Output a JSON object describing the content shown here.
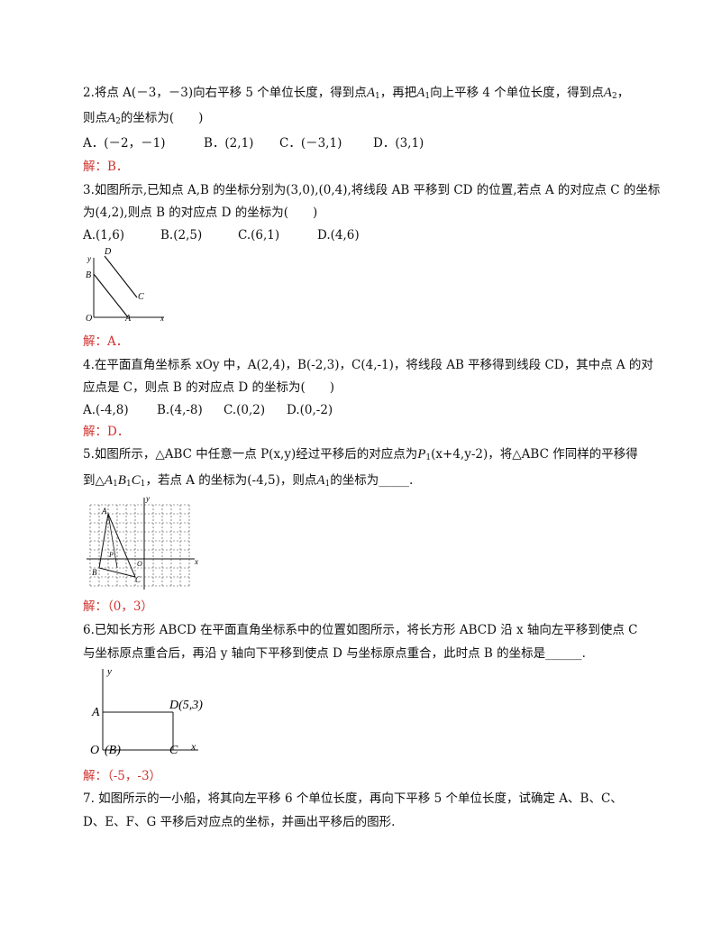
{
  "q2": {
    "line1_a": "2.将点 A(－3，－3)向右平移 5 个单位长度，得到点",
    "A": "A",
    "sub1": "1",
    "line1_b": "，再把",
    "line1_c": "向上平移 4 个单位长度，得到点",
    "sub2": "2",
    "comma": "，",
    "line2_a": "则点",
    "line2_b": "的坐标为(　　)",
    "opt_a": "A．(－2，－1)",
    "opt_b": "B．(2,1)",
    "opt_c": "C．(－3,1)",
    "opt_d": "D．(3,1)",
    "answer": "解：B．"
  },
  "q3": {
    "line1": "3.如图所示,已知点 A,B 的坐标分别为(3,0),(0,4),将线段 AB 平移到 CD 的位置,若点 A 的对应点 C 的坐标",
    "line2": "为(4,2),则点 B 的对应点 D 的坐标为(　　)",
    "opt_a": "A.(1,6)",
    "opt_b": "B.(2,5)",
    "opt_c": "C.(6,1)",
    "opt_d": "D.(4,6)",
    "fig": {
      "D": "D",
      "y": "y",
      "B": "B",
      "C": "C",
      "O": "O",
      "A": "A",
      "x": "x"
    },
    "answer": "解：A．"
  },
  "q4": {
    "line1": "4.在平面直角坐标系 xOy 中，A(2,4)，B(-2,3)，C(4,-1)，将线段 AB 平移得到线段 CD，其中点 A 的对",
    "line2": "应点是 C，则点 B 的对应点 D 的坐标为(　　)",
    "opt_a": "A.(-4,8)",
    "opt_b": "B.(4,-8)",
    "opt_c": "C.(0,2)",
    "opt_d": "D.(0,-2)",
    "answer": "解：D．"
  },
  "q5": {
    "line1_a": "5.如图所示，△ABC 中任意一点 P(x,y)经过平移后的对应点为",
    "P": "P",
    "line1_b": "(x+4,y-2)，将△ABC 作同样的平移得",
    "line2_a": "到△",
    "A": "A",
    "B": "B",
    "C": "C",
    "sub": "1",
    "line2_b": "，若点 A 的坐标为(-4,5)，则点",
    "line2_c": "的坐标为_____.",
    "fig": {
      "y": "y",
      "x": "x",
      "A": "A",
      "B": "B",
      "C": "C",
      "P": "P",
      "O": "O"
    },
    "answer": "解：（0，3）"
  },
  "q6": {
    "line1": "6.已知长方形 ABCD 在平面直角坐标系中的位置如图所示，将长方形 ABCD 沿 x 轴向左平移到使点 C",
    "line2": "与坐标原点重合后，再沿 y 轴向下平移到使点 D 与坐标原点重合，此时点 B 的坐标是______.",
    "fig": {
      "y": "y",
      "A": "A",
      "D": "D(5,3)",
      "O": "O",
      "B": "(B)",
      "C": "C",
      "x": "x"
    },
    "answer": "解：（-5，-3）"
  },
  "q7": {
    "line1": "7. 如图所示的一小船，将其向左平移 6 个单位长度，再向下平移 5 个单位长度，试确定 A、B、C、",
    "line2": "D、E、F、G 平移后对应点的坐标，并画出平移后的图形."
  }
}
